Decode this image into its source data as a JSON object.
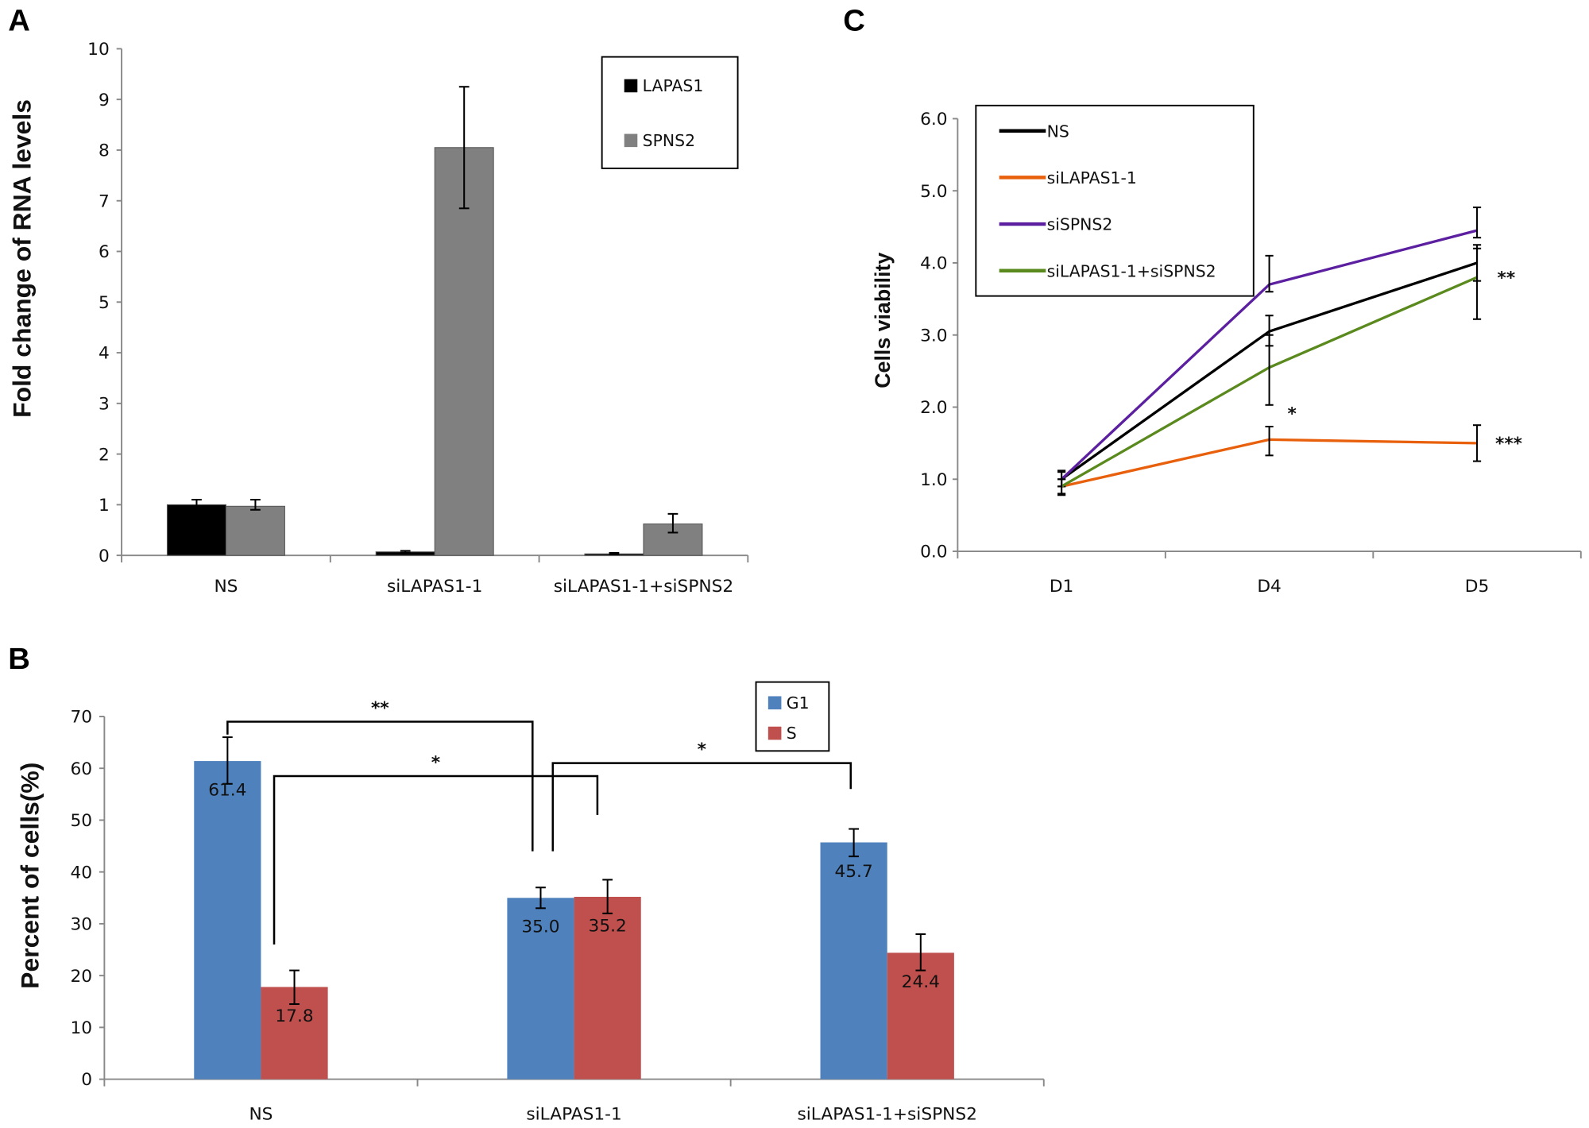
{
  "chart_data": [
    {
      "panel": "A",
      "type": "bar",
      "ylabel": "Fold change of RNA levels",
      "xlabel": "",
      "ylim": [
        0,
        10
      ],
      "yticks": [
        "0",
        "1",
        "2",
        "3",
        "4",
        "5",
        "6",
        "7",
        "8",
        "9",
        "10"
      ],
      "categories": [
        "NS",
        "siLAPAS1-1",
        "siLAPAS1-1+siSPNS2"
      ],
      "legend_position": "top-right",
      "series": [
        {
          "name": "LAPAS1",
          "color": "#000000",
          "values": [
            1.0,
            0.07,
            0.03
          ],
          "err_low": [
            0.9,
            0.05,
            0.02
          ],
          "err_high": [
            1.1,
            0.09,
            0.05
          ]
        },
        {
          "name": "SPNS2",
          "color": "#808080",
          "values": [
            0.97,
            8.05,
            0.62
          ],
          "err_low": [
            0.9,
            6.85,
            0.45
          ],
          "err_high": [
            1.1,
            9.25,
            0.82
          ]
        }
      ]
    },
    {
      "panel": "B",
      "type": "bar",
      "ylabel": "Percent of cells(%)",
      "xlabel": "",
      "ylim": [
        0,
        70
      ],
      "yticks": [
        "0",
        "10",
        "20",
        "30",
        "40",
        "50",
        "60",
        "70"
      ],
      "categories": [
        "NS",
        "siLAPAS1-1",
        "siLAPAS1-1+siSPNS2"
      ],
      "legend_position": "top-right",
      "series": [
        {
          "name": "G1",
          "color": "#4f81bd",
          "values": [
            61.4,
            35.0,
            45.7
          ],
          "labels": [
            "61.4",
            "35.0",
            "45.7"
          ],
          "err_low": [
            57.0,
            33.0,
            43.0
          ],
          "err_high": [
            66.0,
            37.0,
            48.3
          ]
        },
        {
          "name": "S",
          "color": "#c0504d",
          "values": [
            17.8,
            35.2,
            24.4
          ],
          "labels": [
            "17.8",
            "35.2",
            "24.4"
          ],
          "err_low": [
            14.5,
            32.0,
            21.0
          ],
          "err_high": [
            21.0,
            38.5,
            28.0
          ]
        }
      ],
      "annotations": [
        {
          "text": "**",
          "from": "NS G1",
          "to": "siLAPAS1-1 G1"
        },
        {
          "text": "*",
          "from": "NS S",
          "to": "siLAPAS1-1 S"
        },
        {
          "text": "*",
          "from": "siLAPAS1-1 G1",
          "to": "siLAPAS1-1+siSPNS2 G1"
        }
      ]
    },
    {
      "panel": "C",
      "type": "line",
      "ylabel": "Cells viability",
      "xlabel": "",
      "ylim": [
        0,
        6
      ],
      "yticks": [
        "0.0",
        "1.0",
        "2.0",
        "3.0",
        "4.0",
        "5.0",
        "6.0"
      ],
      "categories": [
        "D1",
        "D4",
        "D5"
      ],
      "legend_position": "top-left",
      "series": [
        {
          "name": "NS",
          "color": "#000000",
          "values": [
            1.0,
            3.05,
            4.0
          ],
          "err_low": [
            0.9,
            2.85,
            3.75
          ],
          "err_high": [
            1.1,
            3.27,
            4.25
          ]
        },
        {
          "name": "siLAPAS1-1",
          "color": "#e8600c",
          "values": [
            0.9,
            1.55,
            1.5
          ],
          "err_low": [
            0.78,
            1.33,
            1.25
          ],
          "err_high": [
            1.0,
            1.73,
            1.75
          ]
        },
        {
          "name": "siSPNS2",
          "color": "#5b1fa0",
          "values": [
            1.0,
            3.7,
            4.45
          ],
          "err_low": [
            0.9,
            3.6,
            4.35
          ],
          "err_high": [
            1.12,
            4.1,
            4.77
          ]
        },
        {
          "name": "siLAPAS1-1+siSPNS2",
          "color": "#5a8a1e",
          "values": [
            0.9,
            2.55,
            3.8
          ],
          "err_low": [
            0.8,
            2.03,
            3.22
          ],
          "err_high": [
            1.0,
            3.0,
            4.2
          ]
        }
      ],
      "annotations": [
        {
          "text": "*",
          "category": "D4",
          "series": "siLAPAS1-1"
        },
        {
          "text": "**",
          "category": "D5",
          "series": "siLAPAS1-1+siSPNS2"
        },
        {
          "text": "***",
          "category": "D5",
          "series": "siLAPAS1-1"
        }
      ]
    }
  ]
}
